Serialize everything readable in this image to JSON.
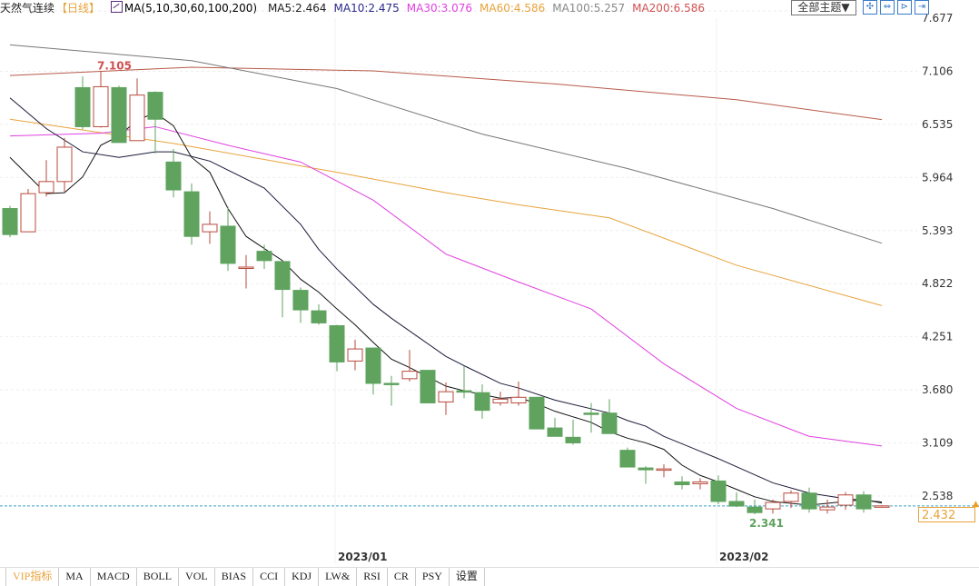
{
  "header": {
    "title": "天然气连续",
    "period": "【日线】",
    "ma_params": "MA(5,10,30,60,100,200)",
    "ma_values": [
      {
        "label": "MA5:2.464",
        "color": "#222222"
      },
      {
        "label": "MA10:2.475",
        "color": "#2a2a8a"
      },
      {
        "label": "MA30:3.076",
        "color": "#e040e0"
      },
      {
        "label": "MA60:4.586",
        "color": "#e8a33c"
      },
      {
        "label": "MA100:5.257",
        "color": "#888888"
      },
      {
        "label": "MA200:6.586",
        "color": "#d05050"
      }
    ]
  },
  "toolbar": {
    "theme_label": "全部主题▼",
    "icons": [
      "crosshair-icon",
      "zoom-range-icon",
      "step-forward-icon",
      "exit-right-icon"
    ],
    "icon_glyphs": [
      "✣",
      "⇔",
      "⊳",
      "⇥"
    ]
  },
  "colors": {
    "up": "#b84a3c",
    "down": "#5fa35f",
    "last_price_line": "#3aa0c0",
    "accent": "#e8a33c"
  },
  "chart_data": {
    "type": "candlestick",
    "y_ticks": [
      "7.677",
      "7.106",
      "6.535",
      "5.964",
      "5.393",
      "4.822",
      "4.251",
      "3.680",
      "3.109",
      "2.538"
    ],
    "ylim": [
      2.1,
      7.677
    ],
    "x_labels": [
      {
        "label": "2023/01",
        "index": 17.9
      },
      {
        "label": "2023/02",
        "index": 38.9
      }
    ],
    "last_price": "2.432",
    "annotations": [
      {
        "label": "7.105",
        "index": 5,
        "position": "above",
        "color": "#d05050"
      },
      {
        "label": "2.341",
        "index": 41,
        "position": "below",
        "color": "#5fa35f"
      }
    ],
    "candles": [
      [
        5.63,
        5.66,
        5.32,
        5.35
      ],
      [
        5.38,
        5.84,
        5.38,
        5.79
      ],
      [
        5.8,
        6.15,
        5.76,
        5.92
      ],
      [
        5.92,
        6.39,
        5.8,
        6.29
      ],
      [
        6.93,
        7.05,
        6.48,
        6.51
      ],
      [
        6.51,
        7.105,
        6.5,
        6.94
      ],
      [
        6.93,
        6.95,
        6.34,
        6.34
      ],
      [
        6.36,
        7.03,
        6.36,
        6.85
      ],
      [
        6.88,
        6.89,
        6.22,
        6.59
      ],
      [
        6.13,
        6.27,
        5.75,
        5.83
      ],
      [
        5.81,
        5.9,
        5.24,
        5.33
      ],
      [
        5.38,
        5.6,
        5.25,
        5.46
      ],
      [
        5.44,
        5.65,
        4.96,
        5.04
      ],
      [
        4.99,
        5.13,
        4.77,
        5.0
      ],
      [
        5.17,
        5.24,
        4.98,
        5.07
      ],
      [
        5.06,
        5.06,
        4.46,
        4.76
      ],
      [
        4.75,
        4.78,
        4.4,
        4.54
      ],
      [
        4.53,
        4.6,
        4.38,
        4.4
      ],
      [
        4.37,
        4.38,
        3.88,
        3.98
      ],
      [
        3.99,
        4.22,
        3.89,
        4.12
      ],
      [
        4.13,
        4.13,
        3.63,
        3.75
      ],
      [
        3.75,
        3.83,
        3.51,
        3.74
      ],
      [
        3.8,
        4.11,
        3.77,
        3.88
      ],
      [
        3.89,
        3.89,
        3.54,
        3.54
      ],
      [
        3.55,
        3.76,
        3.41,
        3.66
      ],
      [
        3.67,
        3.94,
        3.59,
        3.66
      ],
      [
        3.65,
        3.74,
        3.37,
        3.46
      ],
      [
        3.54,
        3.66,
        3.51,
        3.58
      ],
      [
        3.54,
        3.77,
        3.51,
        3.6
      ],
      [
        3.6,
        3.6,
        3.26,
        3.26
      ],
      [
        3.27,
        3.38,
        3.18,
        3.18
      ],
      [
        3.17,
        3.36,
        3.09,
        3.11
      ],
      [
        3.43,
        3.54,
        3.22,
        3.42
      ],
      [
        3.43,
        3.58,
        3.21,
        3.21
      ],
      [
        3.03,
        3.06,
        2.85,
        2.85
      ],
      [
        2.84,
        2.86,
        2.67,
        2.82
      ],
      [
        2.82,
        2.88,
        2.74,
        2.83
      ],
      [
        2.69,
        2.75,
        2.61,
        2.66
      ],
      [
        2.67,
        2.73,
        2.61,
        2.69
      ],
      [
        2.7,
        2.76,
        2.45,
        2.48
      ],
      [
        2.48,
        2.58,
        2.42,
        2.43
      ],
      [
        2.42,
        2.5,
        2.341,
        2.36
      ],
      [
        2.4,
        2.5,
        2.35,
        2.47
      ],
      [
        2.48,
        2.6,
        2.41,
        2.57
      ],
      [
        2.57,
        2.63,
        2.36,
        2.4
      ],
      [
        2.39,
        2.5,
        2.35,
        2.42
      ],
      [
        2.44,
        2.58,
        2.39,
        2.55
      ],
      [
        2.55,
        2.59,
        2.36,
        2.4
      ],
      [
        2.42,
        2.44,
        2.42,
        2.432
      ]
    ],
    "ma_series": [
      {
        "name": "MA5",
        "color": "#111111",
        "points": [
          [
            0,
            6.18
          ],
          [
            2,
            5.79
          ],
          [
            3,
            5.8
          ],
          [
            4,
            5.97
          ],
          [
            5,
            6.31
          ],
          [
            6,
            6.41
          ],
          [
            7,
            6.58
          ],
          [
            8,
            6.66
          ],
          [
            9,
            6.52
          ],
          [
            10,
            6.18
          ],
          [
            11,
            6.02
          ],
          [
            12,
            5.63
          ],
          [
            13,
            5.33
          ],
          [
            15,
            5.07
          ],
          [
            16,
            4.87
          ],
          [
            17,
            4.73
          ],
          [
            18,
            4.55
          ],
          [
            19,
            4.38
          ],
          [
            20,
            4.19
          ],
          [
            21,
            4.01
          ],
          [
            22,
            3.92
          ],
          [
            23,
            3.82
          ],
          [
            24,
            3.72
          ],
          [
            25,
            3.67
          ],
          [
            26,
            3.63
          ],
          [
            27,
            3.59
          ],
          [
            28,
            3.6
          ],
          [
            29,
            3.53
          ],
          [
            30,
            3.45
          ],
          [
            31,
            3.39
          ],
          [
            32,
            3.33
          ],
          [
            33,
            3.23
          ],
          [
            34,
            3.16
          ],
          [
            35,
            3.11
          ],
          [
            36,
            3.04
          ],
          [
            37,
            2.87
          ],
          [
            38,
            2.76
          ],
          [
            39,
            2.69
          ],
          [
            40,
            2.61
          ],
          [
            41,
            2.53
          ],
          [
            42,
            2.48
          ],
          [
            43,
            2.46
          ],
          [
            44,
            2.44
          ],
          [
            45,
            2.46
          ],
          [
            46,
            2.48
          ],
          [
            47,
            2.5
          ],
          [
            48,
            2.464
          ]
        ]
      },
      {
        "name": "MA10",
        "color": "#1a1a3a",
        "points": [
          [
            0,
            6.82
          ],
          [
            2,
            6.49
          ],
          [
            4,
            6.24
          ],
          [
            6,
            6.18
          ],
          [
            8,
            6.24
          ],
          [
            9,
            6.24
          ],
          [
            11,
            6.14
          ],
          [
            14,
            5.85
          ],
          [
            16,
            5.46
          ],
          [
            17,
            5.19
          ],
          [
            18,
            4.98
          ],
          [
            20,
            4.6
          ],
          [
            21,
            4.45
          ],
          [
            24,
            4.04
          ],
          [
            25,
            3.94
          ],
          [
            27,
            3.75
          ],
          [
            28,
            3.7
          ],
          [
            30,
            3.57
          ],
          [
            33,
            3.43
          ],
          [
            34,
            3.35
          ],
          [
            35,
            3.29
          ],
          [
            36,
            3.18
          ],
          [
            39,
            2.94
          ],
          [
            42,
            2.68
          ],
          [
            44,
            2.57
          ],
          [
            46,
            2.51
          ],
          [
            48,
            2.475
          ]
        ]
      },
      {
        "name": "MA30",
        "color": "#e040e0",
        "points": [
          [
            0,
            6.41
          ],
          [
            5,
            6.44
          ],
          [
            8,
            6.51
          ],
          [
            12,
            6.31
          ],
          [
            16,
            6.13
          ],
          [
            20,
            5.72
          ],
          [
            24,
            5.14
          ],
          [
            28,
            4.84
          ],
          [
            32,
            4.55
          ],
          [
            36,
            3.96
          ],
          [
            40,
            3.48
          ],
          [
            44,
            3.18
          ],
          [
            48,
            3.076
          ]
        ]
      },
      {
        "name": "MA60",
        "color": "#e8a33c",
        "points": [
          [
            0,
            6.59
          ],
          [
            9,
            6.33
          ],
          [
            18,
            6.02
          ],
          [
            24,
            5.8
          ],
          [
            28,
            5.67
          ],
          [
            33,
            5.53
          ],
          [
            40,
            5.02
          ],
          [
            48,
            4.586
          ]
        ]
      },
      {
        "name": "MA100",
        "color": "#777777",
        "points": [
          [
            0,
            7.39
          ],
          [
            10,
            7.22
          ],
          [
            18,
            6.92
          ],
          [
            26,
            6.43
          ],
          [
            34,
            6.06
          ],
          [
            42,
            5.63
          ],
          [
            48,
            5.257
          ]
        ]
      },
      {
        "name": "MA200",
        "color": "#b85a4a",
        "points": [
          [
            0,
            7.06
          ],
          [
            10,
            7.15
          ],
          [
            20,
            7.11
          ],
          [
            30,
            6.97
          ],
          [
            40,
            6.8
          ],
          [
            48,
            6.586
          ]
        ]
      }
    ]
  },
  "tabs": [
    "VIP指标",
    "MA",
    "MACD",
    "BOLL",
    "VOL",
    "BIAS",
    "CCI",
    "KDJ",
    "LW&",
    "RSI",
    "CR",
    "PSY",
    "设置"
  ]
}
